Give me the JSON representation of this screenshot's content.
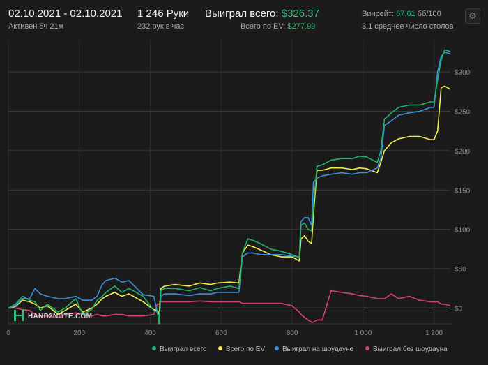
{
  "header": {
    "date_range": "02.10.2021 - 02.10.2021",
    "active": "Активен 5ч 21м",
    "hands": "1 246 Руки",
    "hands_per_hour": "232 рук в час",
    "won_total_label": "Выиграл всего:",
    "won_total_value": "$326.37",
    "ev_total_label": "Всего по EV:",
    "ev_total_value": "$277.99",
    "winrate_label": "Винрейт:",
    "winrate_value": "67.61",
    "winrate_unit": "бб/100",
    "avg_tables": "3.1 среднее число столов",
    "settings_icon": "gear-icon"
  },
  "watermark": {
    "text": "HAND2NOTE.COM"
  },
  "colors": {
    "won_total": "#21b36b",
    "ev": "#f2ef4a",
    "showdown": "#3b8fde",
    "non_showdown": "#d6426e",
    "background": "#1b1b1b",
    "grid": "#3a3a3a",
    "zero_line": "#9a9a9a"
  },
  "chart_data": {
    "type": "line",
    "xlim": [
      0,
      1246
    ],
    "ylim": [
      -20,
      340
    ],
    "x_ticks": [
      0,
      200,
      400,
      600,
      800,
      1000,
      1200
    ],
    "x_tick_labels": [
      "0",
      "200",
      "400",
      "600",
      "800",
      "1 000",
      "1 200"
    ],
    "y_ticks": [
      0,
      50,
      100,
      150,
      200,
      250,
      300
    ],
    "y_tick_labels": [
      "$0",
      "$50",
      "$100",
      "$150",
      "$200",
      "$250",
      "$300"
    ],
    "grid": true,
    "legend_position": "bottom-right",
    "series": [
      {
        "name": "Выиграл всего",
        "color": "#21b36b",
        "points": [
          [
            0,
            0
          ],
          [
            20,
            5
          ],
          [
            40,
            15
          ],
          [
            60,
            10
          ],
          [
            75,
            8
          ],
          [
            90,
            -3
          ],
          [
            110,
            5
          ],
          [
            140,
            -5
          ],
          [
            160,
            0
          ],
          [
            190,
            12
          ],
          [
            210,
            -8
          ],
          [
            235,
            -2
          ],
          [
            250,
            10
          ],
          [
            265,
            15
          ],
          [
            275,
            20
          ],
          [
            300,
            28
          ],
          [
            320,
            20
          ],
          [
            340,
            25
          ],
          [
            380,
            15
          ],
          [
            410,
            -3
          ],
          [
            420,
            -5
          ],
          [
            425,
            -20
          ],
          [
            430,
            22
          ],
          [
            440,
            25
          ],
          [
            470,
            25
          ],
          [
            510,
            22
          ],
          [
            540,
            26
          ],
          [
            570,
            22
          ],
          [
            590,
            25
          ],
          [
            625,
            28
          ],
          [
            650,
            25
          ],
          [
            660,
            70
          ],
          [
            675,
            88
          ],
          [
            690,
            86
          ],
          [
            710,
            82
          ],
          [
            740,
            75
          ],
          [
            770,
            72
          ],
          [
            800,
            68
          ],
          [
            820,
            64
          ],
          [
            825,
            105
          ],
          [
            835,
            108
          ],
          [
            845,
            100
          ],
          [
            855,
            98
          ],
          [
            860,
            130
          ],
          [
            870,
            180
          ],
          [
            885,
            182
          ],
          [
            910,
            188
          ],
          [
            940,
            190
          ],
          [
            970,
            190
          ],
          [
            990,
            193
          ],
          [
            1010,
            192
          ],
          [
            1040,
            185
          ],
          [
            1050,
            200
          ],
          [
            1060,
            240
          ],
          [
            1080,
            248
          ],
          [
            1100,
            255
          ],
          [
            1130,
            258
          ],
          [
            1160,
            258
          ],
          [
            1190,
            262
          ],
          [
            1200,
            262
          ],
          [
            1210,
            290
          ],
          [
            1220,
            315
          ],
          [
            1230,
            328
          ],
          [
            1246,
            326
          ]
        ]
      },
      {
        "name": "Всего по EV",
        "color": "#f2ef4a",
        "points": [
          [
            0,
            0
          ],
          [
            20,
            2
          ],
          [
            40,
            10
          ],
          [
            60,
            8
          ],
          [
            75,
            5
          ],
          [
            90,
            0
          ],
          [
            110,
            3
          ],
          [
            140,
            -8
          ],
          [
            160,
            -3
          ],
          [
            190,
            5
          ],
          [
            210,
            -5
          ],
          [
            235,
            0
          ],
          [
            250,
            5
          ],
          [
            265,
            12
          ],
          [
            275,
            15
          ],
          [
            300,
            20
          ],
          [
            320,
            15
          ],
          [
            340,
            18
          ],
          [
            380,
            8
          ],
          [
            410,
            -2
          ],
          [
            420,
            -3
          ],
          [
            425,
            -8
          ],
          [
            430,
            25
          ],
          [
            440,
            28
          ],
          [
            470,
            30
          ],
          [
            510,
            28
          ],
          [
            540,
            32
          ],
          [
            570,
            30
          ],
          [
            590,
            32
          ],
          [
            625,
            33
          ],
          [
            650,
            32
          ],
          [
            660,
            70
          ],
          [
            675,
            80
          ],
          [
            690,
            78
          ],
          [
            710,
            74
          ],
          [
            740,
            68
          ],
          [
            770,
            65
          ],
          [
            800,
            65
          ],
          [
            820,
            60
          ],
          [
            825,
            88
          ],
          [
            835,
            92
          ],
          [
            845,
            85
          ],
          [
            855,
            82
          ],
          [
            860,
            118
          ],
          [
            870,
            175
          ],
          [
            885,
            175
          ],
          [
            910,
            178
          ],
          [
            940,
            178
          ],
          [
            970,
            176
          ],
          [
            990,
            178
          ],
          [
            1010,
            177
          ],
          [
            1040,
            172
          ],
          [
            1050,
            185
          ],
          [
            1060,
            200
          ],
          [
            1080,
            210
          ],
          [
            1100,
            215
          ],
          [
            1130,
            218
          ],
          [
            1160,
            218
          ],
          [
            1190,
            214
          ],
          [
            1200,
            214
          ],
          [
            1210,
            225
          ],
          [
            1220,
            280
          ],
          [
            1230,
            282
          ],
          [
            1246,
            278
          ]
        ]
      },
      {
        "name": "Выиграл на шоудауне",
        "color": "#3b8fde",
        "points": [
          [
            0,
            0
          ],
          [
            20,
            3
          ],
          [
            40,
            12
          ],
          [
            60,
            12
          ],
          [
            75,
            25
          ],
          [
            90,
            18
          ],
          [
            110,
            15
          ],
          [
            140,
            12
          ],
          [
            160,
            12
          ],
          [
            190,
            15
          ],
          [
            210,
            10
          ],
          [
            235,
            10
          ],
          [
            250,
            15
          ],
          [
            265,
            30
          ],
          [
            275,
            35
          ],
          [
            300,
            38
          ],
          [
            320,
            33
          ],
          [
            340,
            35
          ],
          [
            380,
            17
          ],
          [
            410,
            15
          ],
          [
            420,
            -5
          ],
          [
            425,
            -15
          ],
          [
            430,
            15
          ],
          [
            440,
            18
          ],
          [
            470,
            18
          ],
          [
            510,
            16
          ],
          [
            540,
            18
          ],
          [
            570,
            18
          ],
          [
            590,
            20
          ],
          [
            625,
            20
          ],
          [
            650,
            20
          ],
          [
            660,
            65
          ],
          [
            675,
            70
          ],
          [
            690,
            70
          ],
          [
            710,
            68
          ],
          [
            740,
            68
          ],
          [
            770,
            68
          ],
          [
            800,
            66
          ],
          [
            820,
            65
          ],
          [
            825,
            110
          ],
          [
            835,
            115
          ],
          [
            845,
            115
          ],
          [
            855,
            105
          ],
          [
            860,
            160
          ],
          [
            870,
            165
          ],
          [
            885,
            168
          ],
          [
            910,
            170
          ],
          [
            940,
            172
          ],
          [
            970,
            170
          ],
          [
            990,
            172
          ],
          [
            1010,
            172
          ],
          [
            1040,
            178
          ],
          [
            1050,
            190
          ],
          [
            1060,
            232
          ],
          [
            1080,
            238
          ],
          [
            1100,
            245
          ],
          [
            1130,
            248
          ],
          [
            1160,
            250
          ],
          [
            1190,
            255
          ],
          [
            1200,
            255
          ],
          [
            1210,
            300
          ],
          [
            1220,
            320
          ],
          [
            1230,
            325
          ],
          [
            1246,
            323
          ]
        ]
      },
      {
        "name": "Выиграл без шоудауна",
        "color": "#d6426e",
        "points": [
          [
            0,
            0
          ],
          [
            20,
            0
          ],
          [
            40,
            -2
          ],
          [
            60,
            -3
          ],
          [
            75,
            -8
          ],
          [
            90,
            -10
          ],
          [
            110,
            -10
          ],
          [
            140,
            -12
          ],
          [
            160,
            -8
          ],
          [
            190,
            -6
          ],
          [
            210,
            -8
          ],
          [
            235,
            -10
          ],
          [
            250,
            -8
          ],
          [
            265,
            -10
          ],
          [
            275,
            -10
          ],
          [
            300,
            -8
          ],
          [
            320,
            -8
          ],
          [
            340,
            -10
          ],
          [
            380,
            -10
          ],
          [
            410,
            -8
          ],
          [
            420,
            5
          ],
          [
            425,
            5
          ],
          [
            430,
            8
          ],
          [
            440,
            8
          ],
          [
            470,
            8
          ],
          [
            510,
            8
          ],
          [
            540,
            9
          ],
          [
            570,
            8
          ],
          [
            590,
            8
          ],
          [
            625,
            8
          ],
          [
            650,
            8
          ],
          [
            660,
            6
          ],
          [
            675,
            6
          ],
          [
            690,
            6
          ],
          [
            710,
            6
          ],
          [
            740,
            6
          ],
          [
            770,
            6
          ],
          [
            800,
            3
          ],
          [
            820,
            -5
          ],
          [
            825,
            -8
          ],
          [
            835,
            -12
          ],
          [
            845,
            -15
          ],
          [
            855,
            -18
          ],
          [
            860,
            -18
          ],
          [
            870,
            -15
          ],
          [
            885,
            -15
          ],
          [
            910,
            22
          ],
          [
            940,
            20
          ],
          [
            970,
            18
          ],
          [
            990,
            16
          ],
          [
            1010,
            15
          ],
          [
            1040,
            12
          ],
          [
            1050,
            12
          ],
          [
            1060,
            12
          ],
          [
            1080,
            18
          ],
          [
            1100,
            12
          ],
          [
            1130,
            15
          ],
          [
            1160,
            10
          ],
          [
            1190,
            8
          ],
          [
            1200,
            8
          ],
          [
            1210,
            8
          ],
          [
            1220,
            5
          ],
          [
            1230,
            5
          ],
          [
            1246,
            3
          ]
        ]
      }
    ]
  }
}
